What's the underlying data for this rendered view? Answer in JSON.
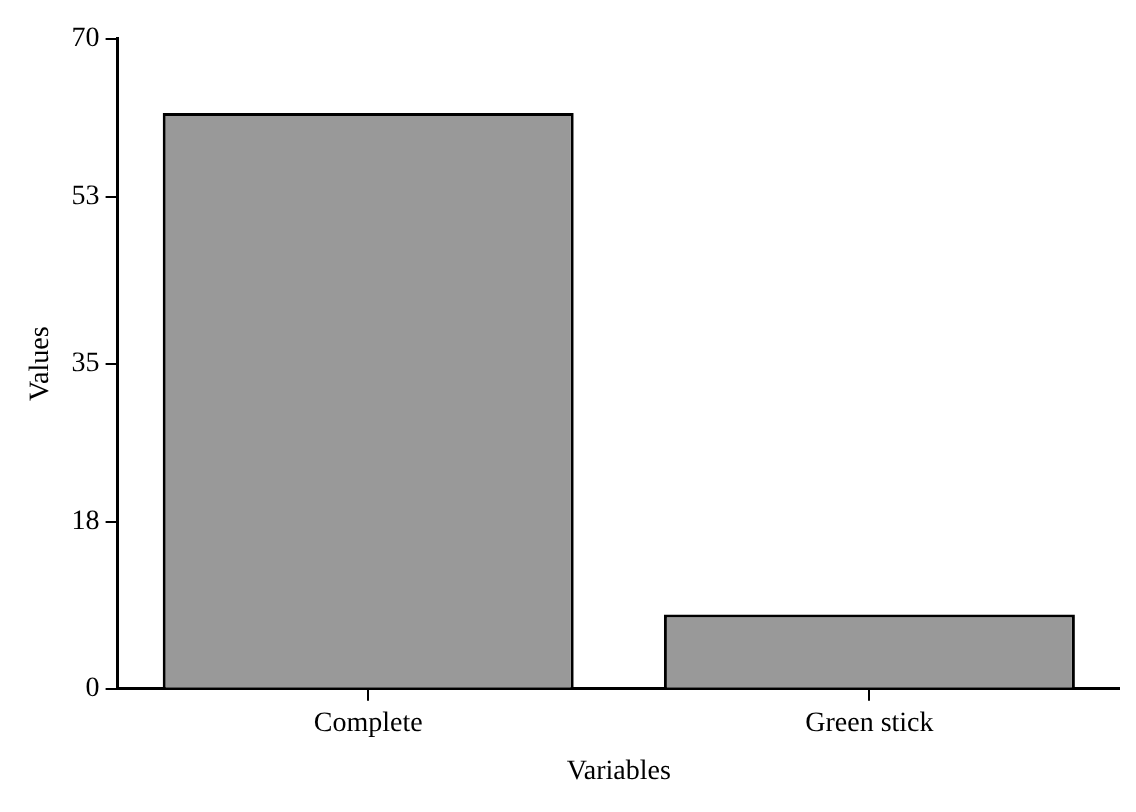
{
  "chart_data": {
    "type": "bar",
    "xlabel": "Variables",
    "ylabel": "Values",
    "categories": [
      "Complete",
      "Green stick"
    ],
    "values": [
      62,
      8
    ],
    "color": "#999999",
    "ylim": [
      0,
      70
    ],
    "yticks": [
      0,
      18,
      35,
      53,
      70
    ],
    "grid": false,
    "legend": false
  }
}
